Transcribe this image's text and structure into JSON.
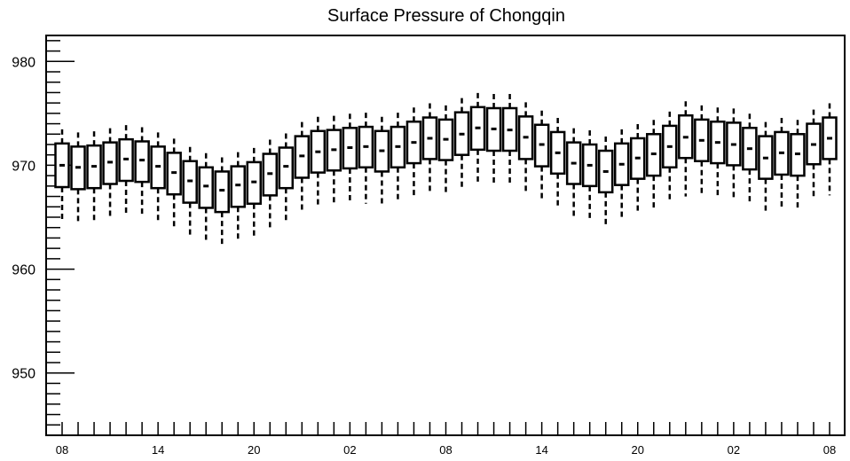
{
  "chart_data": {
    "type": "boxplot",
    "title": "Surface Pressure of Chongqin",
    "xlabel": "",
    "ylabel": "",
    "ylim": [
      944,
      982.5
    ],
    "yticks": [
      950,
      960,
      970,
      980
    ],
    "ytick_labels": [
      "950",
      "960",
      "970",
      "980"
    ],
    "xtick_labels": [
      "08",
      "14",
      "20",
      "02",
      "08",
      "14",
      "20",
      "02",
      "08"
    ],
    "xtick_hours": [
      0,
      6,
      12,
      18,
      24,
      30,
      36,
      42,
      48
    ],
    "grid": false,
    "boxes": [
      {
        "hour": 0,
        "min": 964.6,
        "q1": 967.9,
        "median": 970.0,
        "q3": 972.1,
        "max": 973.6
      },
      {
        "hour": 1,
        "min": 964.4,
        "q1": 967.7,
        "median": 969.8,
        "q3": 971.8,
        "max": 973.3
      },
      {
        "hour": 2,
        "min": 964.5,
        "q1": 967.8,
        "median": 969.9,
        "q3": 971.9,
        "max": 973.4
      },
      {
        "hour": 3,
        "min": 964.8,
        "q1": 968.2,
        "median": 970.3,
        "q3": 972.2,
        "max": 973.7
      },
      {
        "hour": 4,
        "min": 965.1,
        "q1": 968.5,
        "median": 970.6,
        "q3": 972.5,
        "max": 974.0
      },
      {
        "hour": 5,
        "min": 965.0,
        "q1": 968.4,
        "median": 970.5,
        "q3": 972.3,
        "max": 973.8
      },
      {
        "hour": 6,
        "min": 964.5,
        "q1": 967.8,
        "median": 969.9,
        "q3": 971.8,
        "max": 973.3
      },
      {
        "hour": 7,
        "min": 963.8,
        "q1": 967.2,
        "median": 969.3,
        "q3": 971.2,
        "max": 972.7
      },
      {
        "hour": 8,
        "min": 963.0,
        "q1": 966.4,
        "median": 968.5,
        "q3": 970.4,
        "max": 971.9
      },
      {
        "hour": 9,
        "min": 962.6,
        "q1": 965.9,
        "median": 968.0,
        "q3": 969.8,
        "max": 971.3
      },
      {
        "hour": 10,
        "min": 962.3,
        "q1": 965.5,
        "median": 967.6,
        "q3": 969.4,
        "max": 970.9
      },
      {
        "hour": 11,
        "min": 962.8,
        "q1": 966.0,
        "median": 968.1,
        "q3": 969.9,
        "max": 971.4
      },
      {
        "hour": 12,
        "min": 963.0,
        "q1": 966.3,
        "median": 968.4,
        "q3": 970.3,
        "max": 971.8
      },
      {
        "hour": 13,
        "min": 963.8,
        "q1": 967.1,
        "median": 969.2,
        "q3": 971.1,
        "max": 972.6
      },
      {
        "hour": 14,
        "min": 964.5,
        "q1": 967.8,
        "median": 969.9,
        "q3": 971.7,
        "max": 973.2
      },
      {
        "hour": 15,
        "min": 965.5,
        "q1": 968.8,
        "median": 970.9,
        "q3": 972.8,
        "max": 974.3
      },
      {
        "hour": 16,
        "min": 965.9,
        "q1": 969.3,
        "median": 971.3,
        "q3": 973.3,
        "max": 974.8
      },
      {
        "hour": 17,
        "min": 966.1,
        "q1": 969.5,
        "median": 971.5,
        "q3": 973.4,
        "max": 974.9
      },
      {
        "hour": 18,
        "min": 966.3,
        "q1": 969.7,
        "median": 971.7,
        "q3": 973.6,
        "max": 975.1
      },
      {
        "hour": 19,
        "min": 966.3,
        "q1": 969.8,
        "median": 971.8,
        "q3": 973.7,
        "max": 975.2
      },
      {
        "hour": 20,
        "min": 966.0,
        "q1": 969.4,
        "median": 971.4,
        "q3": 973.3,
        "max": 974.8
      },
      {
        "hour": 21,
        "min": 966.4,
        "q1": 969.8,
        "median": 971.8,
        "q3": 973.7,
        "max": 975.2
      },
      {
        "hour": 22,
        "min": 966.9,
        "q1": 970.2,
        "median": 972.2,
        "q3": 974.2,
        "max": 975.7
      },
      {
        "hour": 23,
        "min": 967.3,
        "q1": 970.6,
        "median": 972.6,
        "q3": 974.6,
        "max": 976.1
      },
      {
        "hour": 24,
        "min": 967.2,
        "q1": 970.5,
        "median": 972.5,
        "q3": 974.4,
        "max": 975.9
      },
      {
        "hour": 25,
        "min": 967.7,
        "q1": 971.0,
        "median": 973.0,
        "q3": 975.1,
        "max": 976.6
      },
      {
        "hour": 26,
        "min": 968.3,
        "q1": 971.5,
        "median": 973.6,
        "q3": 975.6,
        "max": 977.1
      },
      {
        "hour": 27,
        "min": 968.3,
        "q1": 971.4,
        "median": 973.5,
        "q3": 975.5,
        "max": 977.0
      },
      {
        "hour": 28,
        "min": 968.2,
        "q1": 971.4,
        "median": 973.4,
        "q3": 975.5,
        "max": 977.0
      },
      {
        "hour": 29,
        "min": 967.5,
        "q1": 970.6,
        "median": 972.7,
        "q3": 974.7,
        "max": 976.2
      },
      {
        "hour": 30,
        "min": 966.8,
        "q1": 969.9,
        "median": 972.0,
        "q3": 973.9,
        "max": 975.4
      },
      {
        "hour": 31,
        "min": 966.0,
        "q1": 969.2,
        "median": 971.2,
        "q3": 973.2,
        "max": 974.7
      },
      {
        "hour": 32,
        "min": 965.0,
        "q1": 968.2,
        "median": 970.2,
        "q3": 972.2,
        "max": 973.7
      },
      {
        "hour": 33,
        "min": 964.8,
        "q1": 968.0,
        "median": 970.0,
        "q3": 972.0,
        "max": 973.5
      },
      {
        "hour": 34,
        "min": 964.3,
        "q1": 967.4,
        "median": 969.4,
        "q3": 971.4,
        "max": 972.9
      },
      {
        "hour": 35,
        "min": 964.8,
        "q1": 968.1,
        "median": 970.1,
        "q3": 972.1,
        "max": 973.6
      },
      {
        "hour": 36,
        "min": 965.5,
        "q1": 968.7,
        "median": 970.7,
        "q3": 972.6,
        "max": 974.1
      },
      {
        "hour": 37,
        "min": 965.8,
        "q1": 969.0,
        "median": 971.1,
        "q3": 973.0,
        "max": 974.5
      },
      {
        "hour": 38,
        "min": 966.4,
        "q1": 969.8,
        "median": 971.8,
        "q3": 973.8,
        "max": 975.3
      },
      {
        "hour": 39,
        "min": 967.0,
        "q1": 970.7,
        "median": 972.7,
        "q3": 974.8,
        "max": 976.3
      },
      {
        "hour": 40,
        "min": 967.2,
        "q1": 970.4,
        "median": 972.4,
        "q3": 974.4,
        "max": 975.9
      },
      {
        "hour": 41,
        "min": 967.1,
        "q1": 970.2,
        "median": 972.2,
        "q3": 974.2,
        "max": 975.7
      },
      {
        "hour": 42,
        "min": 966.9,
        "q1": 970.0,
        "median": 972.0,
        "q3": 974.1,
        "max": 975.6
      },
      {
        "hour": 43,
        "min": 966.3,
        "q1": 969.6,
        "median": 971.6,
        "q3": 973.6,
        "max": 975.1
      },
      {
        "hour": 44,
        "min": 965.4,
        "q1": 968.7,
        "median": 970.7,
        "q3": 972.8,
        "max": 974.3
      },
      {
        "hour": 45,
        "min": 965.7,
        "q1": 969.1,
        "median": 971.2,
        "q3": 973.2,
        "max": 974.7
      },
      {
        "hour": 46,
        "min": 965.7,
        "q1": 969.0,
        "median": 971.1,
        "q3": 973.0,
        "max": 974.5
      },
      {
        "hour": 47,
        "min": 966.9,
        "q1": 970.1,
        "median": 972.0,
        "q3": 974.0,
        "max": 975.5
      },
      {
        "hour": 48,
        "min": 967.1,
        "q1": 970.6,
        "median": 972.6,
        "q3": 974.6,
        "max": 976.1
      }
    ]
  }
}
